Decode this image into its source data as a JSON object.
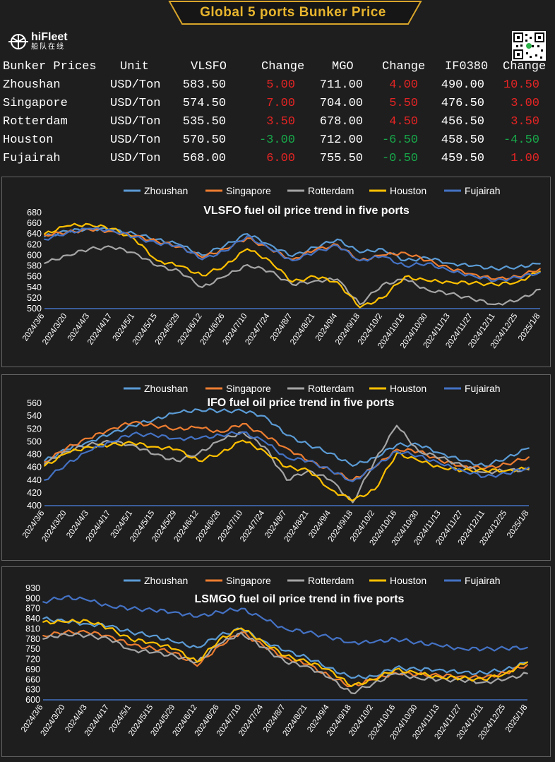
{
  "header": {
    "title": "Global 5 ports  Bunker Price"
  },
  "logo": {
    "name": "hiFleet",
    "subtitle": "船队在线"
  },
  "colors": {
    "Zhoushan": "#5b9bd5",
    "Singapore": "#ed7d31",
    "Rotterdam": "#a5a5a5",
    "Houston": "#ffc000",
    "Fujairah": "#4472c4",
    "up": "#e52424",
    "down": "#18a84a"
  },
  "table": {
    "columns": [
      "Bunker Prices",
      "Unit",
      "VLSFO",
      "Change",
      "MGO",
      "Change",
      "IF0380",
      "Change"
    ],
    "rows": [
      {
        "port": "Zhoushan",
        "unit": "USD/Ton",
        "vlsfo": "583.50",
        "vlsfo_change": "5.00",
        "mgo": "711.00",
        "mgo_change": "4.00",
        "ifo": "490.00",
        "ifo_change": "10.50"
      },
      {
        "port": "Singapore",
        "unit": "USD/Ton",
        "vlsfo": "574.50",
        "vlsfo_change": "7.00",
        "mgo": "704.00",
        "mgo_change": "5.50",
        "ifo": "476.50",
        "ifo_change": "3.00"
      },
      {
        "port": "Rotterdam",
        "unit": "USD/Ton",
        "vlsfo": "535.50",
        "vlsfo_change": "3.50",
        "mgo": "678.00",
        "mgo_change": "4.50",
        "ifo": "456.50",
        "ifo_change": "3.50"
      },
      {
        "port": "Houston",
        "unit": "USD/Ton",
        "vlsfo": "570.50",
        "vlsfo_change": "-3.00",
        "mgo": "712.00",
        "mgo_change": "-6.50",
        "ifo": "458.50",
        "ifo_change": "-4.50"
      },
      {
        "port": "Fujairah",
        "unit": "USD/Ton",
        "vlsfo": "568.00",
        "vlsfo_change": "6.00",
        "mgo": "755.50",
        "mgo_change": "-0.50",
        "ifo": "459.50",
        "ifo_change": "1.00"
      }
    ]
  },
  "chart_data": [
    {
      "type": "line",
      "title": "VLSFO fuel oil price trend in five ports",
      "ylim": [
        500,
        680
      ],
      "yticks": [
        500,
        520,
        540,
        560,
        580,
        600,
        620,
        640,
        660,
        680
      ],
      "categories": [
        "2024/3/6",
        "2024/3/20",
        "2024/4/3",
        "2024/4/17",
        "2024/5/1",
        "2024/5/15",
        "2024/5/29",
        "2024/6/12",
        "2024/6/26",
        "2024/7/10",
        "2024/7/24",
        "2024/8/7",
        "2024/8/21",
        "2024/9/4",
        "2024/9/18",
        "2024/10/2",
        "2024/10/16",
        "2024/10/30",
        "2024/11/13",
        "2024/11/27",
        "2024/12/11",
        "2024/12/25",
        "2025/1/8"
      ],
      "legend": "top",
      "grid": false,
      "series": [
        {
          "name": "Zhoushan",
          "values": [
            635,
            645,
            650,
            648,
            640,
            630,
            620,
            600,
            618,
            640,
            620,
            598,
            615,
            630,
            605,
            612,
            590,
            595,
            585,
            580,
            575,
            578,
            584
          ]
        },
        {
          "name": "Singapore",
          "values": [
            638,
            643,
            648,
            645,
            636,
            626,
            616,
            596,
            612,
            632,
            612,
            592,
            610,
            620,
            590,
            600,
            605,
            590,
            575,
            565,
            555,
            560,
            575
          ]
        },
        {
          "name": "Rotterdam",
          "values": [
            585,
            600,
            612,
            615,
            605,
            580,
            570,
            540,
            560,
            582,
            570,
            545,
            552,
            555,
            508,
            545,
            555,
            535,
            528,
            518,
            508,
            515,
            536
          ]
        },
        {
          "name": "Houston",
          "values": [
            640,
            655,
            658,
            650,
            630,
            590,
            580,
            562,
            580,
            612,
            590,
            550,
            560,
            550,
            502,
            520,
            560,
            552,
            550,
            548,
            545,
            550,
            570
          ]
        },
        {
          "name": "Fujairah",
          "values": [
            630,
            642,
            650,
            647,
            634,
            622,
            618,
            592,
            608,
            636,
            612,
            590,
            606,
            618,
            590,
            598,
            580,
            585,
            570,
            562,
            552,
            558,
            568
          ]
        }
      ]
    },
    {
      "type": "line",
      "title": "IFO fuel oil price trend in five ports",
      "ylim": [
        400,
        560
      ],
      "yticks": [
        400,
        420,
        440,
        460,
        480,
        500,
        520,
        540,
        560
      ],
      "categories": [
        "2024/3/6",
        "2024/3/20",
        "2024/4/3",
        "2024/4/17",
        "2024/5/1",
        "2024/5/15",
        "2024/5/29",
        "2024/6/12",
        "2024/6/26",
        "2024/7/10",
        "2024/7/24",
        "2024/8/7",
        "2024/8/21",
        "2024/9/4",
        "2024/9/18",
        "2024/10/2",
        "2024/10/16",
        "2024/10/30",
        "2024/11/13",
        "2024/11/27",
        "2024/12/11",
        "2024/12/25",
        "2025/1/8"
      ],
      "legend": "top",
      "grid": false,
      "series": [
        {
          "name": "Zhoushan",
          "values": [
            470,
            488,
            500,
            512,
            525,
            535,
            545,
            550,
            548,
            548,
            540,
            510,
            495,
            482,
            462,
            475,
            495,
            495,
            482,
            470,
            462,
            475,
            490
          ]
        },
        {
          "name": "Singapore",
          "values": [
            468,
            490,
            505,
            520,
            530,
            525,
            520,
            522,
            515,
            528,
            510,
            490,
            470,
            455,
            440,
            460,
            488,
            485,
            470,
            462,
            458,
            465,
            476
          ]
        },
        {
          "name": "Rotterdam",
          "values": [
            465,
            485,
            495,
            500,
            495,
            480,
            470,
            482,
            502,
            515,
            492,
            440,
            455,
            440,
            405,
            470,
            525,
            485,
            475,
            462,
            452,
            455,
            456
          ]
        },
        {
          "name": "Houston",
          "values": [
            462,
            482,
            492,
            495,
            498,
            492,
            488,
            470,
            482,
            502,
            485,
            460,
            455,
            425,
            408,
            425,
            482,
            470,
            460,
            455,
            455,
            455,
            458
          ]
        },
        {
          "name": "Fujairah",
          "values": [
            440,
            465,
            485,
            500,
            512,
            510,
            505,
            505,
            510,
            515,
            500,
            475,
            470,
            455,
            438,
            460,
            485,
            478,
            465,
            455,
            445,
            450,
            460
          ]
        }
      ]
    },
    {
      "type": "line",
      "title": "LSMGO fuel oil price trend in five ports",
      "ylim": [
        600,
        930
      ],
      "yticks": [
        600,
        630,
        660,
        690,
        720,
        750,
        780,
        810,
        840,
        870,
        900,
        930
      ],
      "categories": [
        "2024/3/6",
        "2024/3/20",
        "2024/4/3",
        "2024/4/17",
        "2024/5/1",
        "2024/5/15",
        "2024/5/29",
        "2024/6/12",
        "2024/6/26",
        "2024/7/10",
        "2024/7/24",
        "2024/8/7",
        "2024/8/21",
        "2024/9/4",
        "2024/9/18",
        "2024/10/2",
        "2024/10/16",
        "2024/10/30",
        "2024/11/13",
        "2024/11/27",
        "2024/12/11",
        "2024/12/25",
        "2025/1/8"
      ],
      "legend": "top",
      "grid": false,
      "series": [
        {
          "name": "Zhoushan",
          "values": [
            840,
            832,
            825,
            818,
            800,
            790,
            770,
            755,
            790,
            810,
            775,
            745,
            725,
            695,
            665,
            670,
            695,
            690,
            690,
            680,
            680,
            690,
            711
          ]
        },
        {
          "name": "Singapore",
          "values": [
            790,
            800,
            800,
            790,
            762,
            752,
            740,
            700,
            760,
            800,
            760,
            725,
            705,
            670,
            640,
            660,
            680,
            675,
            672,
            670,
            665,
            680,
            704
          ]
        },
        {
          "name": "Rotterdam",
          "values": [
            780,
            795,
            790,
            780,
            748,
            740,
            730,
            712,
            765,
            798,
            755,
            712,
            700,
            665,
            620,
            648,
            678,
            665,
            660,
            658,
            652,
            660,
            678
          ]
        },
        {
          "name": "Houston",
          "values": [
            830,
            830,
            835,
            812,
            778,
            770,
            750,
            712,
            778,
            812,
            772,
            730,
            712,
            690,
            640,
            660,
            690,
            678,
            668,
            664,
            660,
            678,
            712
          ]
        },
        {
          "name": "Fujairah",
          "values": [
            890,
            905,
            895,
            878,
            870,
            865,
            860,
            845,
            860,
            870,
            840,
            810,
            800,
            785,
            770,
            770,
            780,
            770,
            760,
            752,
            750,
            752,
            755
          ]
        }
      ]
    }
  ]
}
